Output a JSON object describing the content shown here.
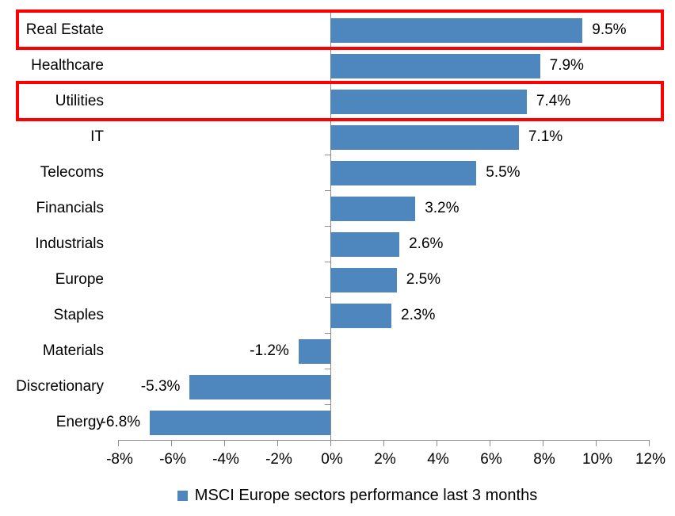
{
  "chart_data": {
    "type": "bar",
    "orientation": "horizontal",
    "title": "",
    "xlabel": "",
    "ylabel": "",
    "categories": [
      "Real Estate",
      "Healthcare",
      "Utilities",
      "IT",
      "Telecoms",
      "Financials",
      "Industrials",
      "Europe",
      "Staples",
      "Materials",
      "Discretionary",
      "Energy"
    ],
    "values": [
      9.5,
      7.9,
      7.4,
      7.1,
      5.5,
      3.2,
      2.6,
      2.5,
      2.3,
      -1.2,
      -5.3,
      -6.8
    ],
    "value_labels": [
      "9.5%",
      "7.9%",
      "7.4%",
      "7.1%",
      "5.5%",
      "3.2%",
      "2.6%",
      "2.5%",
      "2.3%",
      "-1.2%",
      "-5.3%",
      "-6.8%"
    ],
    "highlighted_categories": [
      "Real Estate",
      "Utilities"
    ],
    "xlim": [
      -8,
      12
    ],
    "x_tick_step": 2,
    "x_tick_labels": [
      "-8%",
      "-6%",
      "-4%",
      "-2%",
      "0%",
      "2%",
      "4%",
      "6%",
      "8%",
      "10%",
      "12%"
    ],
    "grid": false,
    "legend": {
      "position": "bottom",
      "entries": [
        {
          "label": "MSCI Europe sectors performance last 3 months",
          "marker": "square",
          "color": "#4E87BD"
        }
      ]
    },
    "colors": {
      "bar": "#4E87BD",
      "axis": "#8C8C8C",
      "text": "#000000",
      "highlight_box": "#FF0000",
      "background": "#FFFFFF"
    }
  }
}
